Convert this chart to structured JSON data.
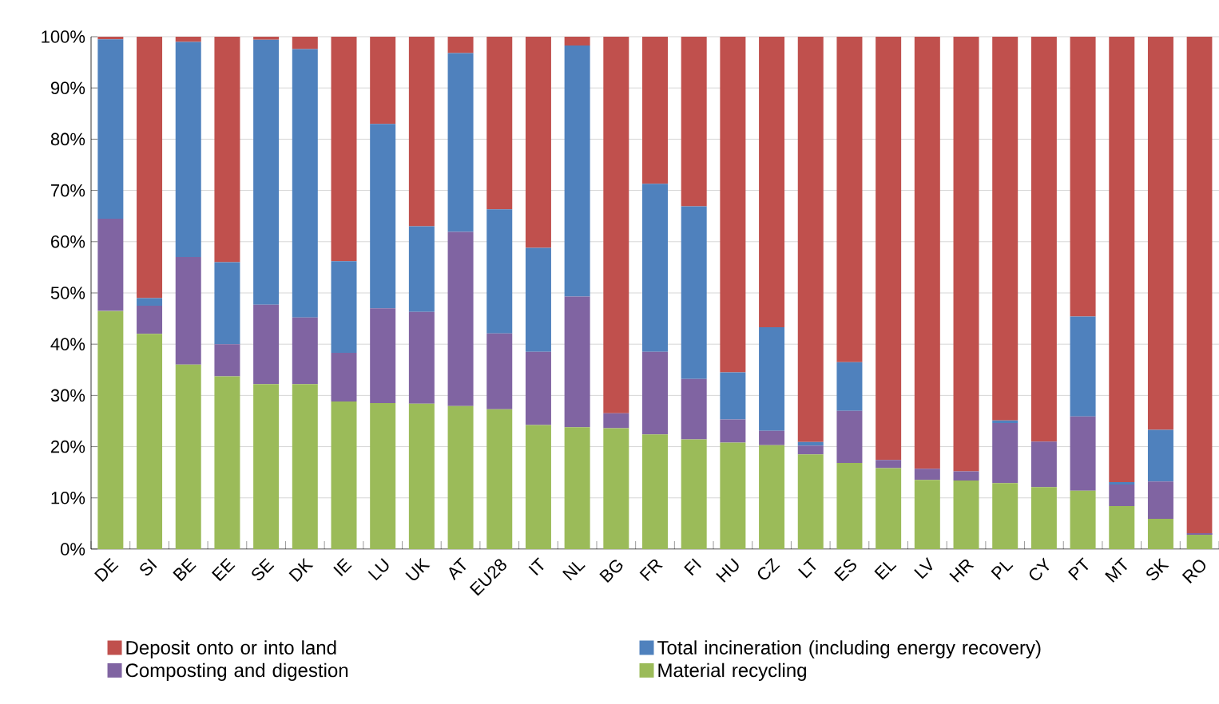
{
  "chart_data": {
    "type": "bar",
    "stacked": true,
    "categories": [
      "DE",
      "SI",
      "BE",
      "EE",
      "SE",
      "DK",
      "IE",
      "LU",
      "UK",
      "AT",
      "EU28",
      "IT",
      "NL",
      "BG",
      "FR",
      "FI",
      "HU",
      "CZ",
      "LT",
      "ES",
      "EL",
      "LV",
      "HR",
      "PL",
      "CY",
      "PT",
      "MT",
      "SK",
      "RO"
    ],
    "series": [
      {
        "name": "Material recycling",
        "color": "#9bbb59",
        "values": [
          46.5,
          42.0,
          36.0,
          33.7,
          32.2,
          32.2,
          28.8,
          28.5,
          28.4,
          27.9,
          27.3,
          24.2,
          23.8,
          23.6,
          22.4,
          21.4,
          20.8,
          20.3,
          18.5,
          16.8,
          15.8,
          13.5,
          13.4,
          12.9,
          12.1,
          11.4,
          8.4,
          5.9,
          2.8
        ]
      },
      {
        "name": "Composting and digestion",
        "color": "#8064a2",
        "values": [
          18.0,
          5.5,
          21.0,
          6.3,
          15.5,
          13.0,
          9.5,
          18.5,
          17.9,
          34.0,
          14.8,
          14.3,
          25.5,
          2.9,
          16.1,
          11.8,
          4.5,
          2.8,
          1.7,
          10.2,
          1.6,
          2.2,
          1.8,
          11.7,
          8.9,
          14.5,
          4.2,
          7.3,
          0.3
        ]
      },
      {
        "name": "Total incineration (including energy recovery)",
        "color": "#4f81bd",
        "values": [
          35.0,
          1.5,
          42.0,
          16.0,
          51.7,
          52.4,
          17.9,
          36.0,
          16.7,
          34.9,
          24.2,
          20.3,
          49.0,
          0,
          32.8,
          33.7,
          9.2,
          20.2,
          0.7,
          9.5,
          0,
          0,
          0,
          0.5,
          0,
          19.5,
          0.5,
          10.1,
          0
        ]
      },
      {
        "name": "Deposit onto or into land",
        "color": "#c0504d",
        "values": [
          0.5,
          51.0,
          1.0,
          44.0,
          0.6,
          2.4,
          43.8,
          17.0,
          37.0,
          3.2,
          33.7,
          41.2,
          1.7,
          73.5,
          28.7,
          33.1,
          65.5,
          56.7,
          79.1,
          63.5,
          82.6,
          84.3,
          84.8,
          74.9,
          79.0,
          54.6,
          86.9,
          76.7,
          96.9
        ]
      }
    ],
    "ylim": [
      0,
      100
    ],
    "yticks": [
      {
        "value": 0,
        "label": "0%"
      },
      {
        "value": 10,
        "label": "10%"
      },
      {
        "value": 20,
        "label": "20%"
      },
      {
        "value": 30,
        "label": "30%"
      },
      {
        "value": 40,
        "label": "40%"
      },
      {
        "value": 50,
        "label": "50%"
      },
      {
        "value": 60,
        "label": "60%"
      },
      {
        "value": 70,
        "label": "70%"
      },
      {
        "value": 80,
        "label": "80%"
      },
      {
        "value": 90,
        "label": "90%"
      },
      {
        "value": 100,
        "label": "100%"
      }
    ],
    "grid": "y",
    "legend": "bottom"
  }
}
